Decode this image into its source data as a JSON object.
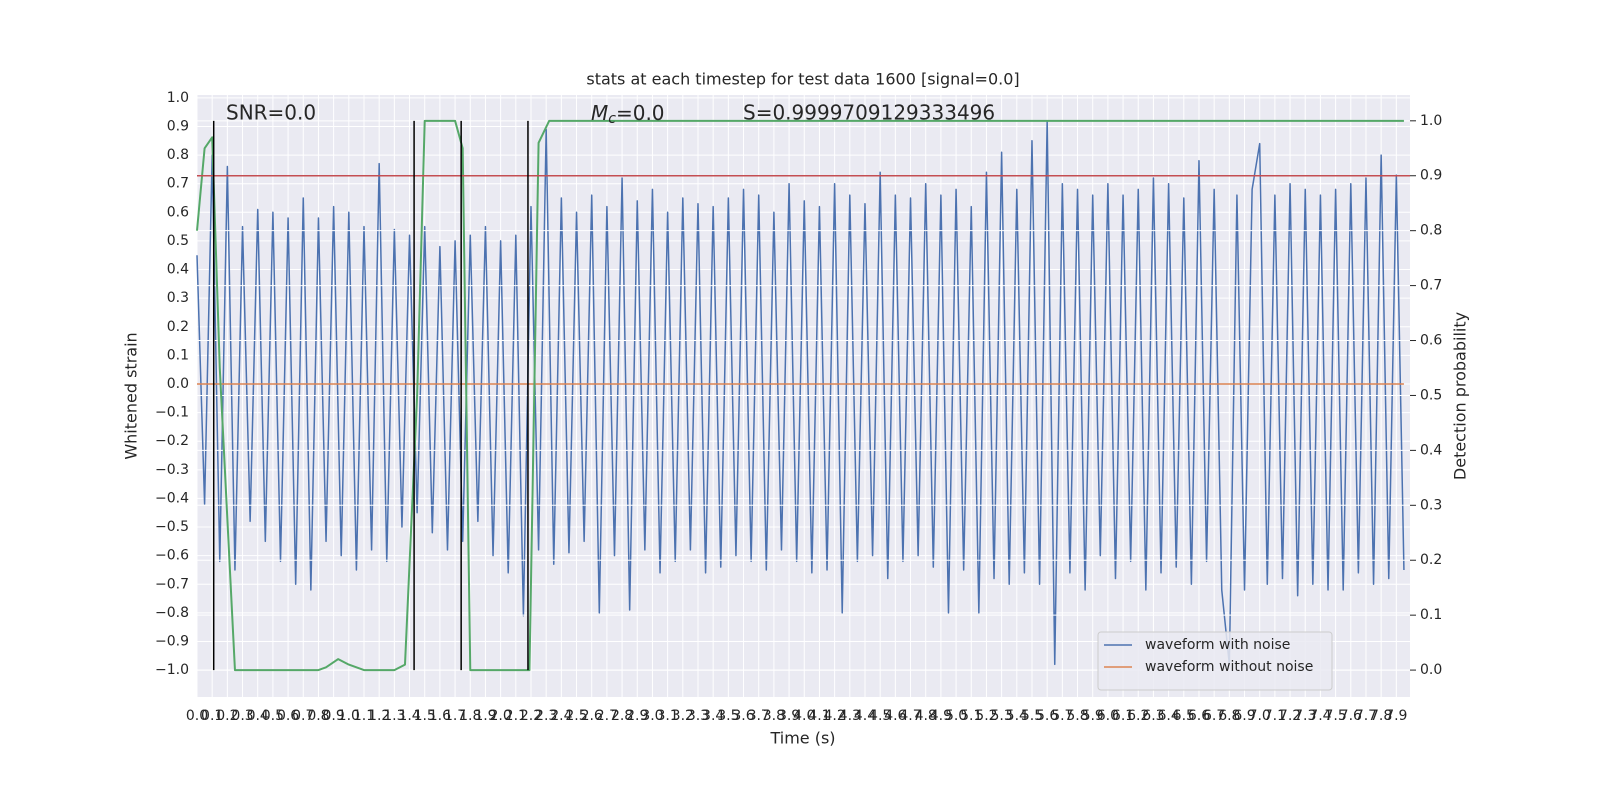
{
  "chart_data": {
    "type": "line",
    "title": "stats at each timestep for test data 1600 [signal=0.0]",
    "xlabel": "Time (s)",
    "ylabel": "Whitened strain",
    "y2label": "Detection probability",
    "annotations": [
      "SNR=0.0",
      "S=0.9999709129333496"
    ],
    "mc_annotation": {
      "symbol": "M",
      "subscript": "c",
      "text": "=0.0"
    },
    "grid": true,
    "legend": "lower right",
    "xlim": [
      0,
      7.99
    ],
    "ylim": [
      -1.094,
      1.01
    ],
    "y2lim": [
      -0.049,
      1.047
    ],
    "xticks": [
      {
        "value": 0,
        "label": "0.0"
      },
      0.1,
      0.2,
      0.3,
      0.4,
      0.5,
      0.6,
      0.7,
      0.8,
      0.9,
      {
        "value": 1,
        "label": "1.0"
      },
      1.1,
      1.2,
      1.3,
      1.4,
      1.5,
      1.6,
      1.7,
      1.8,
      1.9,
      {
        "value": 2,
        "label": "2.0"
      },
      2.1,
      2.2,
      2.3,
      2.4,
      2.5,
      2.6,
      2.7,
      2.8,
      2.9,
      {
        "value": 3,
        "label": "3.0"
      },
      3.1,
      3.2,
      3.3,
      3.4,
      3.5,
      3.6,
      3.7,
      3.8,
      3.9,
      {
        "value": 4,
        "label": "4.0"
      },
      4.1,
      4.2,
      4.3,
      4.4,
      4.5,
      4.6,
      4.7,
      4.8,
      4.9,
      {
        "value": 5,
        "label": "5.0"
      },
      5.1,
      5.2,
      5.3,
      5.4,
      5.5,
      5.6,
      5.7,
      5.8,
      5.9,
      {
        "value": 6,
        "label": "6.0"
      },
      6.1,
      6.2,
      6.3,
      6.4,
      6.5,
      6.6,
      6.7,
      6.8,
      6.9,
      {
        "value": 7,
        "label": "7.0"
      },
      7.1,
      7.2,
      7.3,
      7.4,
      7.5,
      7.6,
      7.7,
      7.8,
      7.9
    ],
    "yticks": [
      {
        "value": -1,
        "label": "−1.0"
      },
      {
        "value": -0.9,
        "label": "−0.9"
      },
      {
        "value": -0.8,
        "label": "−0.8"
      },
      {
        "value": -0.7,
        "label": "−0.7"
      },
      {
        "value": -0.6,
        "label": "−0.6"
      },
      {
        "value": -0.5,
        "label": "−0.5"
      },
      {
        "value": -0.4,
        "label": "−0.4"
      },
      {
        "value": -0.3,
        "label": "−0.3"
      },
      {
        "value": -0.2,
        "label": "−0.2"
      },
      {
        "value": -0.1,
        "label": "−0.1"
      },
      {
        "value": 0,
        "label": "0.0"
      },
      0.1,
      0.2,
      0.3,
      0.4,
      0.5,
      0.6,
      0.7,
      0.8,
      0.9,
      {
        "value": 1,
        "label": "1.0"
      }
    ],
    "y2ticks": [
      {
        "value": 0,
        "label": "0.0"
      },
      0.1,
      0.2,
      0.3,
      0.4,
      0.5,
      0.6,
      0.7,
      0.8,
      0.9,
      {
        "value": 1,
        "label": "1.0"
      }
    ],
    "series": [
      {
        "name": "waveform with noise",
        "color": "#4c72b0",
        "x": [
          0,
          0.05,
          0.1,
          0.15,
          0.2,
          0.25,
          0.3,
          0.35,
          0.4,
          0.45,
          0.5,
          0.55,
          0.6,
          0.65,
          0.7,
          0.75,
          0.8,
          0.85,
          0.9,
          0.95,
          1,
          1.05,
          1.1,
          1.15,
          1.2,
          1.25,
          1.3,
          1.35,
          1.4,
          1.45,
          1.5,
          1.55,
          1.6,
          1.65,
          1.7,
          1.75,
          1.8,
          1.85,
          1.9,
          1.95,
          2,
          2.05,
          2.1,
          2.15,
          2.2,
          2.25,
          2.3,
          2.35,
          2.4,
          2.45,
          2.5,
          2.55,
          2.6,
          2.65,
          2.7,
          2.75,
          2.8,
          2.85,
          2.9,
          2.95,
          3,
          3.05,
          3.1,
          3.15,
          3.2,
          3.25,
          3.3,
          3.35,
          3.4,
          3.45,
          3.5,
          3.55,
          3.6,
          3.65,
          3.7,
          3.75,
          3.8,
          3.85,
          3.9,
          3.95,
          4,
          4.05,
          4.1,
          4.15,
          4.2,
          4.25,
          4.3,
          4.35,
          4.4,
          4.45,
          4.5,
          4.55,
          4.6,
          4.65,
          4.7,
          4.75,
          4.8,
          4.85,
          4.9,
          4.95,
          5,
          5.05,
          5.1,
          5.15,
          5.2,
          5.25,
          5.3,
          5.35,
          5.4,
          5.45,
          5.5,
          5.55,
          5.6,
          5.65,
          5.7,
          5.75,
          5.8,
          5.85,
          5.9,
          5.95,
          6,
          6.05,
          6.1,
          6.15,
          6.2,
          6.25,
          6.3,
          6.35,
          6.4,
          6.45,
          6.5,
          6.55,
          6.6,
          6.65,
          6.7,
          6.75,
          6.8,
          6.85,
          6.9,
          6.95,
          7,
          7.05,
          7.1,
          7.15,
          7.2,
          7.25,
          7.3,
          7.35,
          7.4,
          7.45,
          7.5,
          7.55,
          7.6,
          7.65,
          7.7,
          7.75,
          7.8,
          7.85,
          7.9,
          7.95
        ],
        "values": [
          0.45,
          -0.42,
          0.8,
          -0.62,
          0.76,
          -0.65,
          0.55,
          -0.48,
          0.61,
          -0.55,
          0.6,
          -0.62,
          0.58,
          -0.7,
          0.65,
          -0.72,
          0.58,
          -0.55,
          0.62,
          -0.6,
          0.6,
          -0.65,
          0.55,
          -0.58,
          0.77,
          -0.62,
          0.54,
          -0.5,
          0.52,
          -0.45,
          0.55,
          -0.52,
          0.48,
          -0.58,
          0.5,
          -0.55,
          0.52,
          -0.48,
          0.55,
          -0.6,
          0.5,
          -0.66,
          0.52,
          -0.81,
          0.62,
          -0.58,
          0.89,
          -0.63,
          0.65,
          -0.59,
          0.6,
          -0.55,
          0.66,
          -0.8,
          0.62,
          -0.6,
          0.72,
          -0.79,
          0.64,
          -0.58,
          0.68,
          -0.66,
          0.6,
          -0.62,
          0.65,
          -0.58,
          0.63,
          -0.66,
          0.62,
          -0.64,
          0.65,
          -0.6,
          0.68,
          -0.62,
          0.66,
          -0.65,
          0.6,
          -0.58,
          0.7,
          -0.62,
          0.64,
          -0.66,
          0.62,
          -0.65,
          0.7,
          -0.8,
          0.66,
          -0.62,
          0.63,
          -0.6,
          0.74,
          -0.68,
          0.66,
          -0.62,
          0.65,
          -0.6,
          0.7,
          -0.64,
          0.66,
          -0.8,
          0.68,
          -0.65,
          0.62,
          -0.8,
          0.74,
          -0.68,
          0.81,
          -0.7,
          0.68,
          -0.66,
          0.85,
          -0.7,
          0.92,
          -0.98,
          0.7,
          -0.66,
          0.68,
          -0.72,
          0.66,
          -0.6,
          0.7,
          -0.68,
          0.66,
          -0.62,
          0.68,
          -0.72,
          0.72,
          -0.66,
          0.7,
          -0.64,
          0.65,
          -0.7,
          0.78,
          -0.62,
          0.68,
          -0.72,
          -0.98,
          0.66,
          -0.72,
          0.68,
          0.84,
          -0.7,
          0.66,
          -0.68,
          0.7,
          -0.74,
          0.68,
          -0.7,
          0.66,
          -0.72,
          0.68,
          -0.72,
          0.7,
          -0.66,
          0.72,
          -0.7,
          0.8,
          -0.68,
          0.73,
          -0.65
        ]
      },
      {
        "name": "waveform without noise",
        "color": "#dd8452",
        "x": [
          0,
          7.95
        ],
        "values": [
          0,
          0
        ]
      },
      {
        "axis": "y2",
        "color": "#55a868",
        "x": [
          0,
          0.05,
          0.1,
          0.15,
          0.25,
          0.3,
          0.5,
          0.8,
          0.85,
          0.93,
          1,
          1.1,
          1.3,
          1.37,
          1.45,
          1.5,
          1.55,
          1.7,
          1.75,
          1.8,
          1.85,
          2,
          2.18,
          2.19,
          2.25,
          2.32,
          7.95
        ],
        "values": [
          0.8,
          0.95,
          0.97,
          0.55,
          0,
          0,
          0,
          0,
          0.005,
          0.02,
          0.01,
          0,
          0,
          0.01,
          0.5,
          1,
          1,
          1,
          0.95,
          0,
          0,
          0,
          0,
          0,
          0.96,
          1,
          1
        ]
      }
    ],
    "threshold": {
      "value": 0.9,
      "axis": "y2",
      "color": "#c44e52"
    },
    "vlines": [
      0.11,
      1.43,
      1.74,
      2.18
    ],
    "vline_color": "#000000"
  }
}
